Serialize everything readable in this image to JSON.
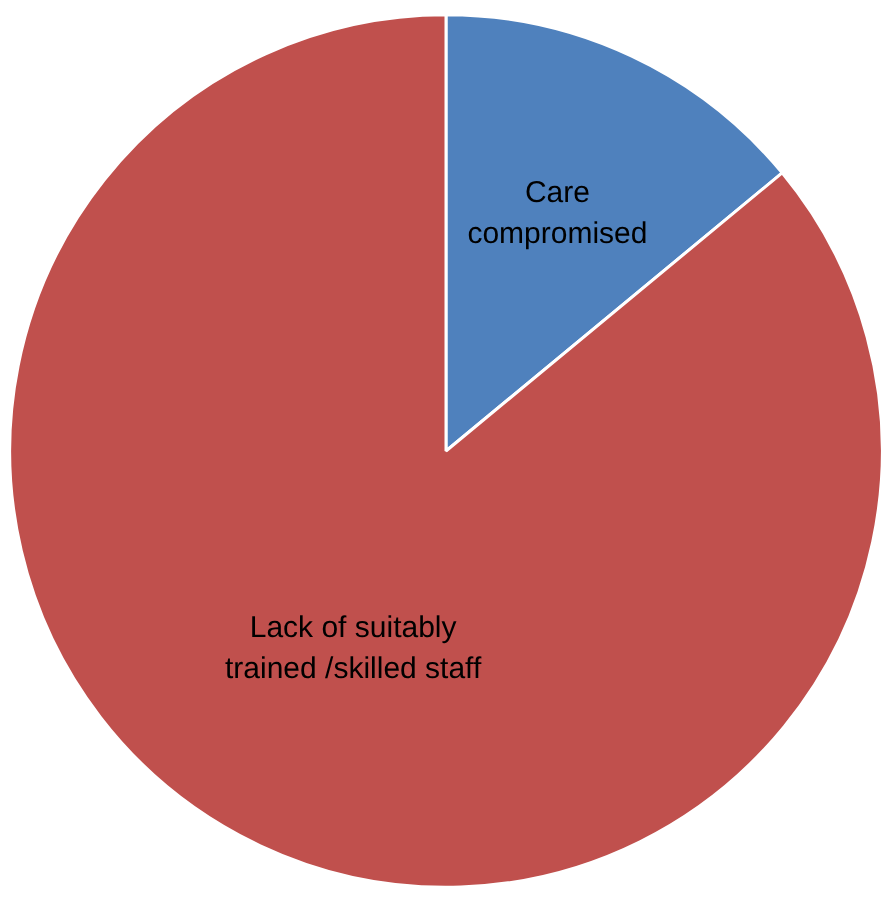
{
  "chart_data": {
    "type": "pie",
    "categories": [
      "Care\ncompromised",
      "Lack of suitably\ntrained /skilled staff"
    ],
    "values": [
      14,
      86
    ],
    "colors": [
      "#4f81bd",
      "#c0504d"
    ]
  }
}
